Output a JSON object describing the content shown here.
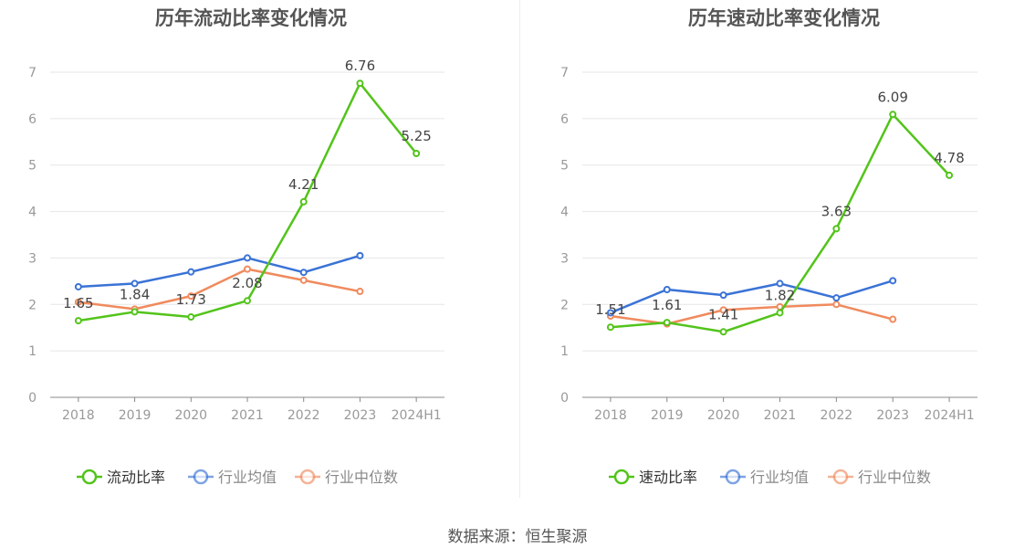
{
  "source_text": "数据来源：恒生聚源",
  "colors": {
    "company": "#52c41a",
    "industry_avg": "#3a73d6",
    "industry_median": "#f08a5d",
    "grid": "#e6e6e6",
    "axis": "#888888",
    "tick_text": "#999999",
    "title": "#555555",
    "label": "#444444"
  },
  "chart_data": [
    {
      "type": "line",
      "title": "历年流动比率变化情况",
      "categories": [
        "2018",
        "2019",
        "2020",
        "2021",
        "2022",
        "2023",
        "2024H1"
      ],
      "yticks": [
        "0",
        "1",
        "2",
        "3",
        "4",
        "5",
        "6",
        "7"
      ],
      "ylim": [
        0,
        7
      ],
      "grid": true,
      "legend_position": "bottom-center",
      "series": [
        {
          "name": "流动比率",
          "key": "company",
          "values": [
            1.65,
            1.84,
            1.73,
            2.08,
            4.21,
            6.76,
            5.25
          ],
          "labels": [
            "1.65",
            "1.84",
            "1.73",
            "2.08",
            "4.21",
            "6.76",
            "5.25"
          ]
        },
        {
          "name": "行业均值",
          "key": "industry_avg",
          "values": [
            2.38,
            2.45,
            2.7,
            3.0,
            2.69,
            3.05,
            null
          ]
        },
        {
          "name": "行业中位数",
          "key": "industry_median",
          "values": [
            2.05,
            1.9,
            2.18,
            2.76,
            2.52,
            2.28,
            null
          ]
        }
      ]
    },
    {
      "type": "line",
      "title": "历年速动比率变化情况",
      "categories": [
        "2018",
        "2019",
        "2020",
        "2021",
        "2022",
        "2023",
        "2024H1"
      ],
      "yticks": [
        "0",
        "1",
        "2",
        "3",
        "4",
        "5",
        "6",
        "7"
      ],
      "ylim": [
        0,
        7
      ],
      "grid": true,
      "legend_position": "bottom-center",
      "series": [
        {
          "name": "速动比率",
          "key": "company",
          "values": [
            1.51,
            1.61,
            1.41,
            1.82,
            3.63,
            6.09,
            4.78
          ],
          "labels": [
            "1.51",
            "1.61",
            "1.41",
            "1.82",
            "3.63",
            "6.09",
            "4.78"
          ]
        },
        {
          "name": "行业均值",
          "key": "industry_avg",
          "values": [
            1.82,
            2.32,
            2.2,
            2.45,
            2.14,
            2.51,
            null
          ]
        },
        {
          "name": "行业中位数",
          "key": "industry_median",
          "values": [
            1.75,
            1.58,
            1.88,
            1.95,
            2.0,
            1.68,
            null
          ]
        }
      ]
    }
  ]
}
